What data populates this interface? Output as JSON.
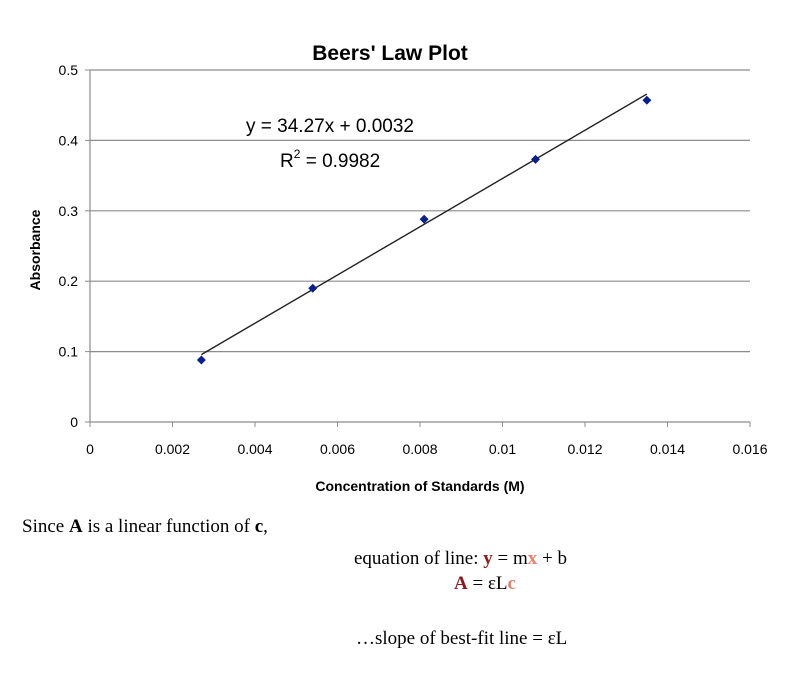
{
  "chart_data": {
    "type": "scatter",
    "title": "Beers' Law Plot",
    "xlabel": "Concentration of Standards (M)",
    "ylabel": "Absorbance",
    "xlim": [
      0,
      0.016
    ],
    "ylim": [
      0,
      0.5
    ],
    "x_ticks": [
      0,
      0.002,
      0.004,
      0.006,
      0.008,
      0.01,
      0.012,
      0.014,
      0.016
    ],
    "x_tick_labels": [
      "0",
      "0.002",
      "0.004",
      "0.006",
      "0.008",
      "0.01",
      "0.012",
      "0.014",
      "0.016"
    ],
    "y_ticks": [
      0,
      0.1,
      0.2,
      0.3,
      0.4,
      0.5
    ],
    "y_tick_labels": [
      "0",
      "0.1",
      "0.2",
      "0.3",
      "0.4",
      "0.5"
    ],
    "grid": "horizontal",
    "series": [
      {
        "x": [
          0.0027,
          0.0054,
          0.0081,
          0.0108,
          0.0135
        ],
        "y": [
          0.088,
          0.19,
          0.288,
          0.373,
          0.457
        ]
      }
    ],
    "trendline": {
      "slope": 34.27,
      "intercept": 0.0032,
      "x_range": [
        0.0027,
        0.0135
      ]
    },
    "annotation": {
      "equation": "y = 34.27x + 0.0032",
      "r2_prefix": "R",
      "r2_sup": "2",
      "r2_value": " = 0.9982"
    },
    "colors": {
      "point": "#0a1f8f",
      "trendline": "#222222",
      "grid": "#8c8c8c"
    }
  },
  "text": {
    "line1_pre": "Since ",
    "line1_A": "A",
    "line1_mid": " is a linear function of ",
    "line1_c": "c",
    "line1_post": ",",
    "line2_pre": "equation of line:  ",
    "line2_y": "y",
    "line2_mid": " = m",
    "line2_x": "x",
    "line2_post": " + b",
    "line3_A": "A",
    "line3_mid": " = εL",
    "line3_c": "c",
    "line4": "…slope of best-fit line = εL"
  }
}
